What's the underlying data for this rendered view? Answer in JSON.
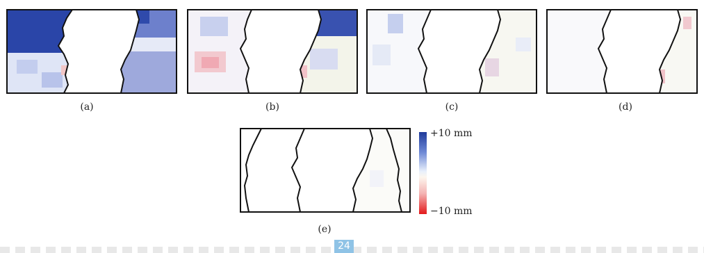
{
  "panels": [
    {
      "id": "a",
      "caption": "(a)"
    },
    {
      "id": "b",
      "caption": "(b)"
    },
    {
      "id": "c",
      "caption": "(c)"
    },
    {
      "id": "d",
      "caption": "(d)"
    },
    {
      "id": "e",
      "caption": "(e)"
    }
  ],
  "colorbar": {
    "max_label": "+10 mm",
    "min_label": "−10 mm",
    "max_color": "#1f3a9a",
    "mid_color": "#ffffff",
    "min_color": "#e31a1c"
  },
  "page_number": "24"
}
